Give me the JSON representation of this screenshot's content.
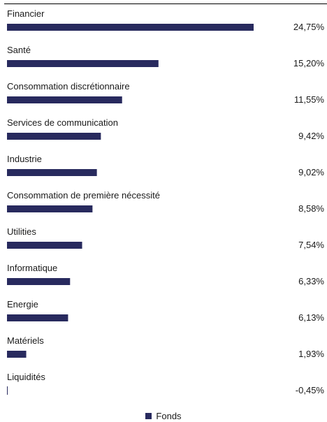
{
  "chart_data": {
    "type": "bar",
    "orientation": "horizontal",
    "categories": [
      "Financier",
      "Santé",
      "Consommation discrétionnaire",
      "Services de communication",
      "Industrie",
      "Consommation de première nécessité",
      "Utilities",
      "Informatique",
      "Energie",
      "Matériels",
      "Liquidités"
    ],
    "series": [
      {
        "name": "Fonds",
        "color": "#282a5e",
        "values": [
          24.75,
          15.2,
          11.55,
          9.42,
          9.02,
          8.58,
          7.54,
          6.33,
          6.13,
          1.93,
          -0.45
        ],
        "value_labels": [
          "24,75%",
          "15,20%",
          "11,55%",
          "9,42%",
          "9,02%",
          "8,58%",
          "7,54%",
          "6,33%",
          "6,13%",
          "1,93%",
          "-0,45%"
        ]
      }
    ],
    "xlim": [
      0,
      24.75
    ],
    "grid": false,
    "legend_position": "bottom-center"
  },
  "legend": {
    "label": "Fonds",
    "color": "#282a5e"
  }
}
